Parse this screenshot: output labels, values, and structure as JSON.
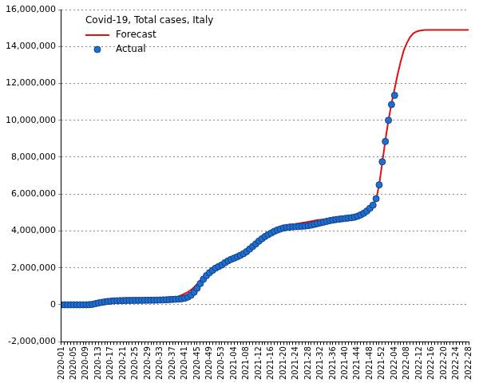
{
  "chart_data": {
    "type": "line",
    "title": "Covid-19, Total cases, Italy",
    "legend": "upper left",
    "grid": true,
    "categories": [
      "2020-01",
      null,
      null,
      null,
      "2020-05",
      null,
      null,
      null,
      "2020-09",
      null,
      null,
      null,
      "2020-13",
      null,
      null,
      null,
      "2020-17",
      null,
      null,
      null,
      "2020-21",
      null,
      null,
      null,
      "2020-25",
      null,
      null,
      null,
      "2020-29",
      null,
      null,
      null,
      "2020-33",
      null,
      null,
      null,
      "2020-37",
      null,
      null,
      null,
      "2020-41",
      null,
      null,
      null,
      "2020-45",
      null,
      null,
      null,
      "2020-49",
      null,
      null,
      null,
      "2020-53",
      null,
      null,
      null,
      "2021-04",
      null,
      null,
      null,
      "2021-08",
      null,
      null,
      null,
      "2021-12",
      null,
      null,
      null,
      "2021-16",
      null,
      null,
      null,
      "2021-20",
      null,
      null,
      null,
      "2021-24",
      null,
      null,
      null,
      "2021-28",
      null,
      null,
      null,
      "2021-32",
      null,
      null,
      null,
      "2021-36",
      null,
      null,
      null,
      "2021-40",
      null,
      null,
      null,
      "2021-44",
      null,
      null,
      null,
      "2021-48",
      null,
      null,
      null,
      "2021-52",
      null,
      null,
      null,
      "2022-04",
      null,
      null,
      null,
      "2022-08",
      null,
      null,
      null,
      "2022-12",
      null,
      null,
      null,
      "2022-16",
      null,
      null,
      null,
      "2022-20",
      null,
      null,
      null,
      "2022-24",
      null,
      null,
      null,
      "2022-28"
    ],
    "series": [
      {
        "name": "Forecast",
        "color": "#dd1111",
        "marker": "none",
        "line_style": "solid",
        "values": [
          -100000,
          -100000,
          -100000,
          -100000,
          -100000,
          -100000,
          -100000,
          -100000,
          -90000,
          -60000,
          -20000,
          20000,
          60000,
          100000,
          130000,
          155000,
          175000,
          190000,
          200000,
          208000,
          214000,
          219000,
          223000,
          227000,
          230000,
          233000,
          236000,
          239000,
          242000,
          246000,
          251000,
          258000,
          268000,
          282000,
          300000,
          325000,
          360000,
          405000,
          460000,
          530000,
          610000,
          700000,
          810000,
          950000,
          1120000,
          1300000,
          1470000,
          1620000,
          1760000,
          1890000,
          2010000,
          2120000,
          2220000,
          2330000,
          2410000,
          2490000,
          2570000,
          2650000,
          2740000,
          2840000,
          2950000,
          3070000,
          3200000,
          3330000,
          3460000,
          3590000,
          3710000,
          3820000,
          3920000,
          4010000,
          4090000,
          4160000,
          4220000,
          4270000,
          4310000,
          4350000,
          4380000,
          4410000,
          4440000,
          4470000,
          4500000,
          4530000,
          4560000,
          4590000,
          4610000,
          4630000,
          4650000,
          4670000,
          4690000,
          4700000,
          4710000,
          4720000,
          4730000,
          4740000,
          4760000,
          4790000,
          4840000,
          4910000,
          5000000,
          5110000,
          5250000,
          5440000,
          5700000,
          6500000,
          7700000,
          8900000,
          10000000,
          10900000,
          11700000,
          12500000,
          13200000,
          13800000,
          14200000,
          14500000,
          14700000,
          14800000,
          14850000,
          14880000,
          14900000,
          14900000,
          14900000,
          14900000,
          14900000,
          14900000,
          14900000,
          14900000,
          14900000,
          14900000,
          14900000,
          14900000,
          14900000,
          14900000,
          14900000
        ]
      },
      {
        "name": "Actual",
        "color": "#1f6fd0",
        "marker": "circle",
        "line_style": "none",
        "values": [
          0,
          0,
          0,
          0,
          0,
          0,
          0,
          0,
          1000,
          7000,
          24000,
          60000,
          100000,
          128000,
          156000,
          178000,
          197000,
          211000,
          219000,
          225000,
          230000,
          233000,
          235000,
          237000,
          239000,
          240000,
          242000,
          243000,
          245000,
          247000,
          249000,
          252000,
          258000,
          264000,
          272000,
          280000,
          289000,
          299000,
          310000,
          325000,
          360000,
          420000,
          525000,
          680000,
          900000,
          1150000,
          1380000,
          1580000,
          1740000,
          1870000,
          1990000,
          2080000,
          2160000,
          2280000,
          2380000,
          2460000,
          2530000,
          2600000,
          2680000,
          2770000,
          2880000,
          3020000,
          3160000,
          3300000,
          3450000,
          3580000,
          3700000,
          3800000,
          3890000,
          3980000,
          4050000,
          4110000,
          4160000,
          4190000,
          4210000,
          4225000,
          4235000,
          4245000,
          4255000,
          4270000,
          4290000,
          4320000,
          4360000,
          4400000,
          4440000,
          4480000,
          4520000,
          4560000,
          4590000,
          4620000,
          4640000,
          4660000,
          4680000,
          4700000,
          4720000,
          4750000,
          4800000,
          4870000,
          4960000,
          5080000,
          5230000,
          5400000,
          5750000,
          6500000,
          7750000,
          8850000,
          10000000,
          10850000,
          11350000,
          null,
          null,
          null,
          null,
          null,
          null,
          null,
          null,
          null,
          null,
          null,
          null,
          null,
          null,
          null,
          null,
          null,
          null,
          null,
          null,
          null,
          null,
          null,
          null
        ]
      }
    ],
    "ylim": [
      -2000000,
      16000000
    ],
    "yticks": [
      {
        "value": -2000000,
        "label": "-2,000,000"
      },
      {
        "value": 0,
        "label": "0"
      },
      {
        "value": 2000000,
        "label": "2,000,000"
      },
      {
        "value": 4000000,
        "label": "4,000,000"
      },
      {
        "value": 6000000,
        "label": "6,000,000"
      },
      {
        "value": 8000000,
        "label": "8,000,000"
      },
      {
        "value": 10000000,
        "label": "10,000,000"
      },
      {
        "value": 12000000,
        "label": "12,000,000"
      },
      {
        "value": 14000000,
        "label": "14,000,000"
      },
      {
        "value": 16000000,
        "label": "16,000,000"
      }
    ]
  }
}
